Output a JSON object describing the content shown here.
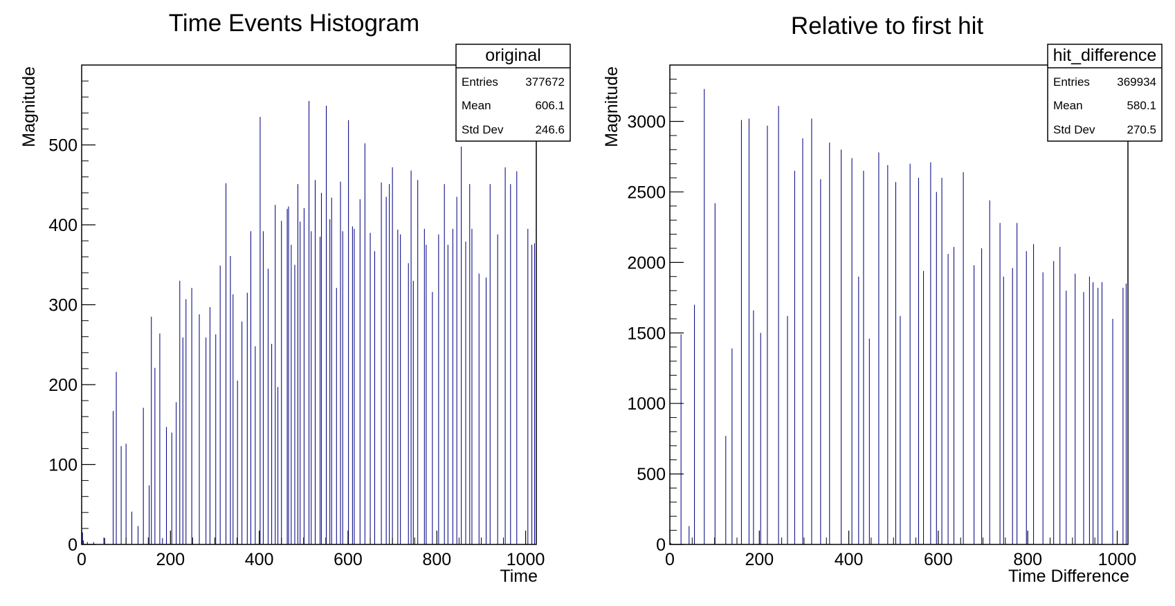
{
  "chart_data": [
    {
      "type": "bar",
      "title": "Time Events Histogram",
      "xlabel": "Time",
      "ylabel": "Magnitude",
      "xlim": [
        0,
        1024
      ],
      "ylim": [
        0,
        600
      ],
      "x_ticks": [
        0,
        200,
        400,
        600,
        800,
        1000
      ],
      "y_ticks": [
        0,
        100,
        200,
        300,
        400,
        500
      ],
      "bar_color": "#000080",
      "stats": {
        "name": "original",
        "rows": [
          {
            "label": "Entries",
            "value": "377672"
          },
          {
            "label": "Mean",
            "value": "606.1"
          },
          {
            "label": "Std Dev",
            "value": "246.6"
          }
        ]
      },
      "bins": {
        "x": [
          2,
          4,
          13,
          27,
          52,
          71,
          78,
          89,
          100,
          113,
          127,
          139,
          152,
          157,
          165,
          176,
          182,
          191,
          203,
          213,
          221,
          228,
          235,
          248,
          265,
          280,
          289,
          302,
          312,
          325,
          335,
          341,
          351,
          361,
          373,
          381,
          391,
          402,
          409,
          420,
          428,
          436,
          442,
          450,
          463,
          466,
          472,
          480,
          487,
          492,
          501,
          512,
          517,
          526,
          537,
          540,
          551,
          559,
          563,
          574,
          583,
          588,
          601,
          610,
          614,
          627,
          638,
          650,
          660,
          675,
          686,
          693,
          700,
          712,
          718,
          736,
          742,
          747,
          757,
          772,
          776,
          790,
          804,
          817,
          825,
          836,
          845,
          855,
          865,
          874,
          879,
          895,
          911,
          920,
          937,
          954,
          966,
          980,
          1005,
          1014,
          1020
        ],
        "values": [
          15,
          5,
          3,
          3,
          8,
          167,
          216,
          123,
          126,
          41,
          23,
          171,
          74,
          285,
          221,
          264,
          8,
          147,
          140,
          178,
          330,
          259,
          307,
          321,
          288,
          259,
          297,
          263,
          349,
          452,
          361,
          313,
          205,
          279,
          315,
          392,
          248,
          535,
          392,
          345,
          251,
          425,
          197,
          405,
          420,
          423,
          375,
          350,
          451,
          404,
          421,
          555,
          392,
          456,
          385,
          440,
          549,
          407,
          434,
          321,
          454,
          392,
          531,
          398,
          395,
          432,
          502,
          390,
          367,
          453,
          435,
          451,
          472,
          394,
          388,
          352,
          468,
          330,
          456,
          395,
          375,
          316,
          388,
          451,
          375,
          395,
          435,
          498,
          379,
          451,
          395,
          339,
          334,
          451,
          388,
          472,
          451,
          467,
          395,
          375,
          377
        ]
      }
    },
    {
      "type": "bar",
      "title": "Relative to first hit",
      "xlabel": "Time Difference",
      "ylabel": "Magnitude",
      "xlim": [
        0,
        1024
      ],
      "ylim": [
        0,
        3400
      ],
      "x_ticks": [
        0,
        200,
        400,
        600,
        800,
        1000
      ],
      "y_ticks": [
        0,
        500,
        1000,
        1500,
        2000,
        2500,
        3000
      ],
      "bar_color": "#000080",
      "stats": {
        "name": "hit_difference",
        "rows": [
          {
            "label": "Entries",
            "value": "369934"
          },
          {
            "label": "Mean",
            "value": "580.1"
          },
          {
            "label": "Std Dev",
            "value": "270.5"
          }
        ]
      },
      "bins": {
        "x": [
          2,
          25,
          43,
          55,
          77,
          101,
          125,
          139,
          160,
          177,
          187,
          203,
          218,
          243,
          263,
          279,
          297,
          317,
          337,
          357,
          383,
          407,
          422,
          433,
          446,
          467,
          487,
          505,
          515,
          537,
          556,
          567,
          583,
          596,
          608,
          622,
          635,
          656,
          680,
          697,
          715,
          738,
          746,
          766,
          776,
          797,
          813,
          834,
          858,
          872,
          886,
          906,
          925,
          938,
          946,
          957,
          966,
          990,
          1013,
          1020
        ],
        "values": [
          10,
          1490,
          130,
          1700,
          3230,
          2420,
          770,
          1390,
          3010,
          3020,
          1660,
          1500,
          2970,
          3110,
          1620,
          2650,
          2880,
          3020,
          2590,
          2850,
          2800,
          2740,
          1900,
          2650,
          1460,
          2780,
          2690,
          2570,
          1620,
          2700,
          2600,
          1940,
          2710,
          2500,
          2600,
          2060,
          2110,
          2640,
          1980,
          2100,
          2440,
          2280,
          1900,
          1960,
          2280,
          2080,
          2130,
          1930,
          2010,
          2110,
          1800,
          1920,
          1790,
          1900,
          1860,
          1820,
          1860,
          1600,
          1820,
          1850
        ]
      }
    }
  ]
}
